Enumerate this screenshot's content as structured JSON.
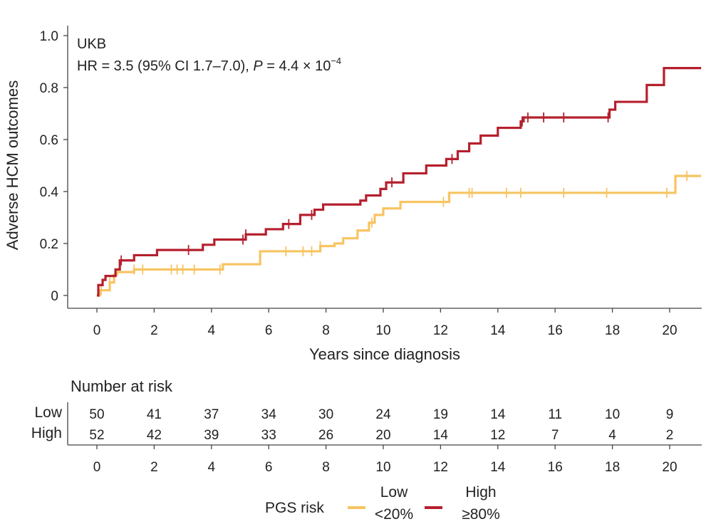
{
  "chart_data": {
    "type": "line",
    "subtype": "kaplan-meier",
    "title": "",
    "cohort_label": "UKB",
    "stat": {
      "hr_text": "HR = 3.5 (95% CI 1.7–7.0), ",
      "p_italic": "P",
      "p_eq": " = 4.4 × 10",
      "p_exp": "−4"
    },
    "xlabel": "Years since diagnosis",
    "ylabel": "Adverse HCM outcomes",
    "xlim": [
      -1,
      21.1
    ],
    "ylim": [
      0,
      1.0
    ],
    "x_ticks": [
      0,
      2,
      4,
      6,
      8,
      10,
      12,
      14,
      16,
      18,
      20
    ],
    "x_tick_labels": [
      "0",
      "2",
      "4",
      "6",
      "8",
      "10",
      "12",
      "14",
      "16",
      "18",
      "20"
    ],
    "y_ticks": [
      0,
      0.2,
      0.4,
      0.6,
      0.8,
      1.0
    ],
    "y_tick_labels": [
      "0",
      "0.2",
      "0.4",
      "0.6",
      "0.8",
      "1.0"
    ],
    "series": [
      {
        "name": "Low",
        "color": "#f7c462",
        "steps": [
          [
            0,
            0
          ],
          [
            0.1,
            0.02
          ],
          [
            0.45,
            0.05
          ],
          [
            0.6,
            0.08
          ],
          [
            0.7,
            0.09
          ],
          [
            1.3,
            0.1
          ],
          [
            4.4,
            0.12
          ],
          [
            5.7,
            0.17
          ],
          [
            7.8,
            0.19
          ],
          [
            8.3,
            0.2
          ],
          [
            8.6,
            0.22
          ],
          [
            9.1,
            0.25
          ],
          [
            9.5,
            0.28
          ],
          [
            9.7,
            0.31
          ],
          [
            10.0,
            0.335
          ],
          [
            10.6,
            0.36
          ],
          [
            12.3,
            0.395
          ],
          [
            20.2,
            0.46
          ],
          [
            21.1,
            0.46
          ]
        ],
        "censor_x": [
          0.15,
          0.45,
          1.3,
          1.6,
          2.6,
          2.8,
          3.0,
          3.4,
          4.3,
          6.6,
          7.2,
          7.5,
          7.8,
          9.6,
          12.1,
          13.0,
          13.1,
          14.3,
          14.8,
          16.3,
          17.8,
          19.9,
          20.6
        ]
      },
      {
        "name": "High",
        "color": "#b5202e",
        "steps": [
          [
            0,
            0
          ],
          [
            0.05,
            0.04
          ],
          [
            0.2,
            0.06
          ],
          [
            0.3,
            0.075
          ],
          [
            0.65,
            0.1
          ],
          [
            0.8,
            0.135
          ],
          [
            1.3,
            0.155
          ],
          [
            2.1,
            0.175
          ],
          [
            3.7,
            0.195
          ],
          [
            4.1,
            0.215
          ],
          [
            5.2,
            0.235
          ],
          [
            5.9,
            0.255
          ],
          [
            6.5,
            0.275
          ],
          [
            7.1,
            0.31
          ],
          [
            7.6,
            0.33
          ],
          [
            7.9,
            0.35
          ],
          [
            9.2,
            0.365
          ],
          [
            9.4,
            0.385
          ],
          [
            9.9,
            0.41
          ],
          [
            10.1,
            0.435
          ],
          [
            10.7,
            0.47
          ],
          [
            11.5,
            0.5
          ],
          [
            12.2,
            0.525
          ],
          [
            12.6,
            0.555
          ],
          [
            13.0,
            0.585
          ],
          [
            13.4,
            0.615
          ],
          [
            14.0,
            0.645
          ],
          [
            14.8,
            0.67
          ],
          [
            14.9,
            0.685
          ],
          [
            17.9,
            0.715
          ],
          [
            18.1,
            0.745
          ],
          [
            19.2,
            0.81
          ],
          [
            19.8,
            0.875
          ],
          [
            21.1,
            0.875
          ]
        ],
        "censor_x": [
          0.85,
          3.2,
          5.1,
          5.2,
          6.7,
          7.5,
          10.3,
          12.4,
          14.85,
          15.05,
          15.6,
          16.3,
          17.85
        ]
      }
    ],
    "risk_table": {
      "title": "Number at risk",
      "rows": [
        {
          "label": "Low",
          "values": [
            "50",
            "41",
            "37",
            "34",
            "30",
            "24",
            "19",
            "14",
            "11",
            "10",
            "9"
          ]
        },
        {
          "label": "High",
          "values": [
            "52",
            "42",
            "39",
            "33",
            "26",
            "20",
            "14",
            "12",
            "7",
            "4",
            "2"
          ]
        }
      ]
    },
    "legend": {
      "title": "PGS risk",
      "placement": "bottom-center",
      "items": [
        {
          "line1": "Low",
          "line2": "<20%",
          "color": "#f7c462"
        },
        {
          "line1": "High",
          "line2": "≥80%",
          "color": "#b5202e"
        }
      ]
    }
  }
}
